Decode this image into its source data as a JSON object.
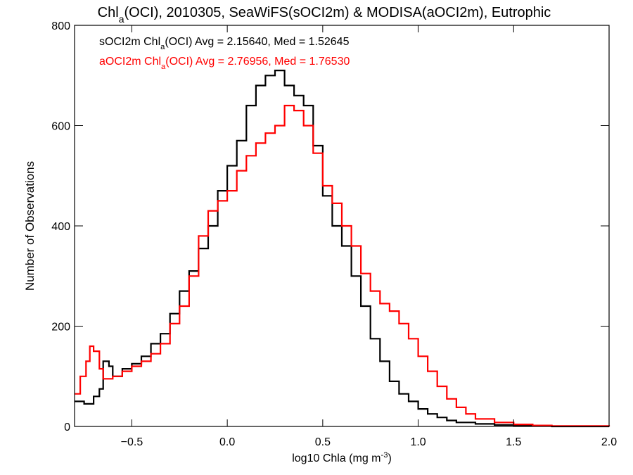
{
  "chart_data": {
    "type": "line",
    "title_parts": [
      "Chl",
      "a",
      "(OCI), 2010305, SeaWiFS(sOCI2m) & MODISA(aOCI2m), Eutrophic"
    ],
    "xlabel_parts": [
      "log10 Chla (mg m",
      "-3",
      ")"
    ],
    "ylabel": "Number of Observations",
    "xlim": [
      -0.8,
      2.0
    ],
    "ylim": [
      0,
      800
    ],
    "x_ticks": [
      -0.5,
      0.0,
      0.5,
      1.0,
      1.5,
      2.0
    ],
    "x_tick_labels": [
      "−0.5",
      "0.0",
      "0.5",
      "1.0",
      "1.5",
      "2.0"
    ],
    "y_ticks": [
      0,
      200,
      400,
      600,
      800
    ],
    "y_tick_labels": [
      "0",
      "200",
      "400",
      "600",
      "800"
    ],
    "step": "histogram",
    "annotations": [
      {
        "parts": [
          "sOCI2m Chl",
          "a",
          "(OCI) Avg = 2.15640, Med = 1.52645"
        ],
        "color": "#000000"
      },
      {
        "parts": [
          "aOCI2m Chl",
          "a",
          "(OCI) Avg = 2.76956, Med = 1.76530"
        ],
        "color": "#ff0000"
      }
    ],
    "series": [
      {
        "color": "#000000",
        "points": [
          [
            -0.8,
            50
          ],
          [
            -0.75,
            45
          ],
          [
            -0.7,
            60
          ],
          [
            -0.67,
            75
          ],
          [
            -0.65,
            130
          ],
          [
            -0.62,
            120
          ],
          [
            -0.6,
            100
          ],
          [
            -0.55,
            115
          ],
          [
            -0.5,
            125
          ],
          [
            -0.45,
            140
          ],
          [
            -0.4,
            165
          ],
          [
            -0.35,
            185
          ],
          [
            -0.3,
            225
          ],
          [
            -0.25,
            270
          ],
          [
            -0.2,
            310
          ],
          [
            -0.15,
            355
          ],
          [
            -0.1,
            400
          ],
          [
            -0.05,
            470
          ],
          [
            0.0,
            520
          ],
          [
            0.05,
            570
          ],
          [
            0.1,
            640
          ],
          [
            0.15,
            680
          ],
          [
            0.2,
            700
          ],
          [
            0.25,
            710
          ],
          [
            0.3,
            680
          ],
          [
            0.35,
            660
          ],
          [
            0.4,
            640
          ],
          [
            0.45,
            560
          ],
          [
            0.5,
            460
          ],
          [
            0.55,
            400
          ],
          [
            0.6,
            360
          ],
          [
            0.65,
            300
          ],
          [
            0.7,
            240
          ],
          [
            0.75,
            175
          ],
          [
            0.8,
            130
          ],
          [
            0.85,
            90
          ],
          [
            0.9,
            65
          ],
          [
            0.95,
            50
          ],
          [
            1.0,
            35
          ],
          [
            1.05,
            25
          ],
          [
            1.1,
            18
          ],
          [
            1.15,
            12
          ],
          [
            1.2,
            8
          ],
          [
            1.3,
            5
          ],
          [
            1.4,
            3
          ],
          [
            1.5,
            2
          ],
          [
            1.6,
            1
          ],
          [
            1.7,
            0
          ],
          [
            2.0,
            0
          ]
        ]
      },
      {
        "color": "#ff0000",
        "points": [
          [
            -0.8,
            65
          ],
          [
            -0.77,
            100
          ],
          [
            -0.74,
            130
          ],
          [
            -0.72,
            160
          ],
          [
            -0.7,
            150
          ],
          [
            -0.67,
            115
          ],
          [
            -0.65,
            95
          ],
          [
            -0.6,
            100
          ],
          [
            -0.55,
            110
          ],
          [
            -0.5,
            120
          ],
          [
            -0.45,
            130
          ],
          [
            -0.4,
            145
          ],
          [
            -0.35,
            165
          ],
          [
            -0.3,
            205
          ],
          [
            -0.25,
            240
          ],
          [
            -0.2,
            300
          ],
          [
            -0.15,
            380
          ],
          [
            -0.1,
            430
          ],
          [
            -0.05,
            450
          ],
          [
            0.0,
            470
          ],
          [
            0.05,
            510
          ],
          [
            0.1,
            540
          ],
          [
            0.15,
            565
          ],
          [
            0.2,
            585
          ],
          [
            0.25,
            600
          ],
          [
            0.3,
            640
          ],
          [
            0.35,
            630
          ],
          [
            0.4,
            600
          ],
          [
            0.45,
            545
          ],
          [
            0.5,
            480
          ],
          [
            0.55,
            445
          ],
          [
            0.6,
            400
          ],
          [
            0.65,
            360
          ],
          [
            0.7,
            305
          ],
          [
            0.75,
            270
          ],
          [
            0.8,
            245
          ],
          [
            0.85,
            230
          ],
          [
            0.9,
            205
          ],
          [
            0.95,
            175
          ],
          [
            1.0,
            140
          ],
          [
            1.05,
            110
          ],
          [
            1.1,
            80
          ],
          [
            1.15,
            55
          ],
          [
            1.2,
            38
          ],
          [
            1.25,
            25
          ],
          [
            1.3,
            15
          ],
          [
            1.4,
            8
          ],
          [
            1.5,
            4
          ],
          [
            1.6,
            2
          ],
          [
            1.7,
            1
          ],
          [
            2.0,
            0
          ]
        ]
      }
    ]
  }
}
